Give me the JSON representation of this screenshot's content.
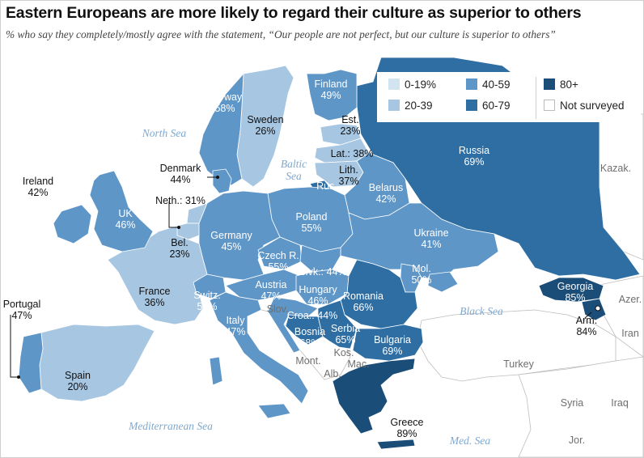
{
  "title": "Eastern Europeans are more likely to regard their culture as superior to others",
  "subtitle": "% who say they completely/mostly agree with the statement, “Our people are not perfect, but our culture is superior to others”",
  "colors": {
    "c0_19": "#d3e4f1",
    "c20_39": "#a7c6e2",
    "c40_59": "#5f96c8",
    "c60_79": "#2f6ea3",
    "c80_plus": "#1a4d78",
    "not_surveyed": "#ffffff",
    "sea": "#7fa8cf",
    "land_outline": "#bdbdbd"
  },
  "legend": {
    "bins": [
      {
        "label": "0-19%",
        "color": "#d3e4f1"
      },
      {
        "label": "20-39",
        "color": "#a7c6e2"
      },
      {
        "label": "40-59",
        "color": "#5f96c8"
      },
      {
        "label": "60-79",
        "color": "#2f6ea3"
      },
      {
        "label": "80+",
        "color": "#1a4d78"
      },
      {
        "label": "Not surveyed",
        "color": "#ffffff"
      }
    ]
  },
  "countries": [
    {
      "id": "ireland",
      "name": "Ireland",
      "value": "42%"
    },
    {
      "id": "uk",
      "name": "UK",
      "value": "46%"
    },
    {
      "id": "portugal",
      "name": "Portugal",
      "value": "47%"
    },
    {
      "id": "spain",
      "name": "Spain",
      "value": "20%"
    },
    {
      "id": "france",
      "name": "France",
      "value": "36%"
    },
    {
      "id": "belgium",
      "name": "Bel.",
      "value": "23%"
    },
    {
      "id": "netherlands",
      "name": "Neth.:",
      "value": "31%"
    },
    {
      "id": "denmark",
      "name": "Denmark",
      "value": "44%"
    },
    {
      "id": "norway",
      "name": "Norway",
      "value": "58%"
    },
    {
      "id": "sweden",
      "name": "Sweden",
      "value": "26%"
    },
    {
      "id": "finland",
      "name": "Finland",
      "value": "49%"
    },
    {
      "id": "estonia",
      "name": "Est.",
      "value": "23%"
    },
    {
      "id": "latvia",
      "name": "Lat.:",
      "value": "38%"
    },
    {
      "id": "lithuania",
      "name": "Lith.",
      "value": "37%"
    },
    {
      "id": "russia",
      "name": "Russia",
      "value": "69%"
    },
    {
      "id": "belarus",
      "name": "Belarus",
      "value": "42%"
    },
    {
      "id": "poland",
      "name": "Poland",
      "value": "55%"
    },
    {
      "id": "germany",
      "name": "Germany",
      "value": "45%"
    },
    {
      "id": "czech",
      "name": "Czech R.",
      "value": "55%"
    },
    {
      "id": "slovakia",
      "name": "Slvk.:",
      "value": "44%"
    },
    {
      "id": "ukraine",
      "name": "Ukraine",
      "value": "41%"
    },
    {
      "id": "moldova",
      "name": "Mol.",
      "value": "50%"
    },
    {
      "id": "austria",
      "name": "Austria",
      "value": "47%"
    },
    {
      "id": "hungary",
      "name": "Hungary",
      "value": "46%"
    },
    {
      "id": "switzerland",
      "name": "Switz.",
      "value": "50%"
    },
    {
      "id": "italy",
      "name": "Italy",
      "value": "47%"
    },
    {
      "id": "croatia",
      "name": "Croa.:",
      "value": "44%"
    },
    {
      "id": "romania",
      "name": "Romania",
      "value": "66%"
    },
    {
      "id": "serbia",
      "name": "Serbia",
      "value": "65%"
    },
    {
      "id": "bosnia",
      "name": "Bosnia",
      "value": "68%"
    },
    {
      "id": "bulgaria",
      "name": "Bulgaria",
      "value": "69%"
    },
    {
      "id": "greece",
      "name": "Greece",
      "value": "89%"
    },
    {
      "id": "georgia",
      "name": "Georgia",
      "value": "85%"
    },
    {
      "id": "armenia",
      "name": "Arm.",
      "value": "84%"
    }
  ],
  "other_labels": {
    "slovenia": "Slov.",
    "montenegro": "Mont.",
    "kosovo": "Kos.",
    "albania": "Alb.",
    "macedonia": "Mac.",
    "russia_kaliningrad": "Rus.",
    "azerbaijan": "Azer.",
    "iran": "Iran",
    "turkey": "Turkey",
    "syria": "Syria",
    "iraq": "Iraq",
    "jordan": "Jor.",
    "kazakhstan": "Kazak."
  },
  "seas": {
    "north_sea": "North Sea",
    "baltic_sea": "Baltic Sea",
    "black_sea": "Black Sea",
    "mediterranean_sea": "Mediterranean Sea",
    "med_sea": "Med. Sea"
  }
}
